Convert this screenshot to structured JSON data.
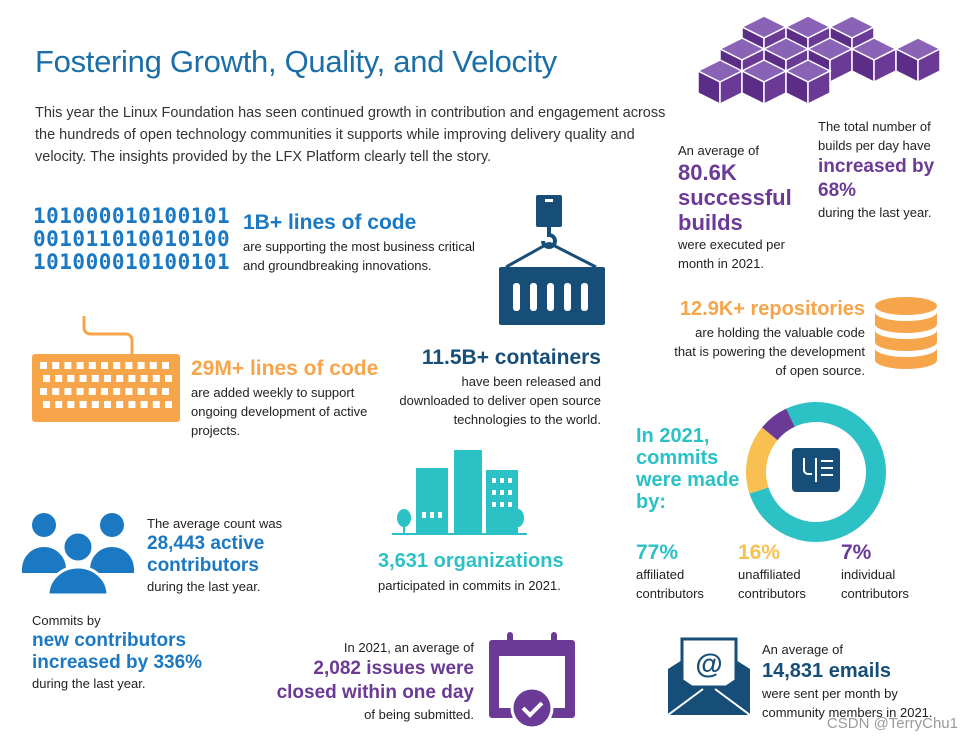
{
  "title": "Fostering Growth, Quality, and Velocity",
  "intro": "This year the Linux Foundation has seen continued growth in contribution and engagement across the hundreds of open technology communities it supports while improving delivery quality and velocity. The insights provided by the LFX Platform clearly tell the story.",
  "binary": [
    "101000010100101",
    "001011010010100",
    "101000010100101"
  ],
  "lines_of_code": {
    "headline": "1B+ lines of code",
    "text": "are supporting the most business critical and groundbreaking innovations."
  },
  "weekly": {
    "headline": "29M+ lines of code",
    "text": "are added weekly to support ongoing development of active projects."
  },
  "containers": {
    "headline": "11.5B+ containers",
    "text": "have been released and downloaded to deliver open source technologies to the world."
  },
  "builds": {
    "pre": "An average of",
    "headline": "80.6K successful builds",
    "post": "were executed per month in 2021."
  },
  "builds_increase": {
    "pre": "The total number of builds per day have",
    "headline": "increased by 68%",
    "post": "during the last year."
  },
  "repos": {
    "headline": "12.9K+ repositories",
    "text": "are holding the valuable code that is powering the development of open source."
  },
  "commits": {
    "heading": "In 2021, commits were made by:",
    "items": [
      {
        "pct": "77%",
        "label": "affiliated contributors",
        "color": "#2cc1c4"
      },
      {
        "pct": "16%",
        "label": "unaffiliated contributors",
        "color": "#f8bf51"
      },
      {
        "pct": "7%",
        "label": "individual contributors",
        "color": "#6b3a96"
      }
    ]
  },
  "chart_data": {
    "type": "pie",
    "categories": [
      "affiliated contributors",
      "unaffiliated contributors",
      "individual contributors"
    ],
    "values": [
      77,
      16,
      7
    ]
  },
  "active": {
    "pre": "The average count was",
    "headline": "28,443 active contributors",
    "post": "during the last year."
  },
  "orgs": {
    "headline": "3,631 organizations",
    "text": "participated in commits in 2021."
  },
  "new_contrib": {
    "pre": "Commits by",
    "headline": "new contributors increased by 336%",
    "post": "during the last year."
  },
  "issues": {
    "pre": "In 2021, an average of",
    "headline": "2,082 issues were closed within one day",
    "post": "of being submitted."
  },
  "emails": {
    "pre": "An average of",
    "headline": "14,831 emails",
    "post": "were sent per month by community members in 2021."
  },
  "watermark": "CSDN @TerryChu1",
  "colors": {
    "blue": "#1b78c2",
    "navy": "#164e78",
    "orange": "#f7a54b",
    "purple": "#6b3a96",
    "teal": "#2cc1c4",
    "yellow": "#f8bf51"
  }
}
